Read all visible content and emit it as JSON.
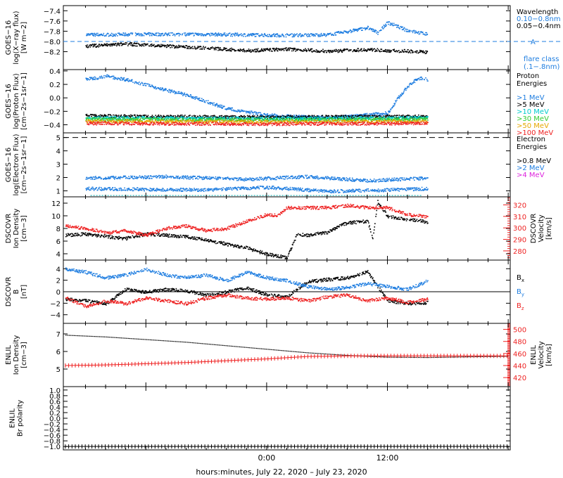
{
  "footer": {
    "xlabel": "hours:minutes, July 22, 2020 – July 23, 2020"
  },
  "time_ticks": [
    "0:00",
    "12:00"
  ],
  "chart_data": [
    {
      "type": "scatter",
      "id": "xray",
      "ylabel": [
        "GOES−16",
        "log(X−ray flux)",
        "[W m−2]"
      ],
      "ylim": [
        -8.55,
        -7.3
      ],
      "yticks": [
        -7.4,
        -7.6,
        -7.8,
        -8.0,
        -8.2
      ],
      "ytick_labels": [
        "−7.4",
        "−7.6",
        "−7.8",
        "−8.0",
        "−8.2"
      ],
      "legend": {
        "title": "Wavelength",
        "entries": [
          {
            "label": "0.10−0.8nm",
            "color": "#1e7de0"
          },
          {
            "label": "0.05−0.4nm",
            "color": "#000000"
          }
        ]
      },
      "flare_marker": {
        "value": -8.0,
        "label": "A",
        "note_lines": [
          "flare class",
          "(.1−.8nm)"
        ],
        "color": "#1e7de0"
      },
      "series": [
        {
          "name": "0.10−0.8nm",
          "color": "#1e7de0",
          "style": "dots",
          "x": [
            -18,
            -12,
            -6,
            -2,
            2,
            6,
            8,
            10,
            11,
            12,
            14,
            16
          ],
          "y": [
            -7.86,
            -7.85,
            -7.85,
            -7.86,
            -7.87,
            -7.86,
            -7.8,
            -7.72,
            -7.82,
            -7.62,
            -7.78,
            -7.85
          ]
        },
        {
          "name": "0.05−0.4nm",
          "color": "#000000",
          "style": "dots",
          "x": [
            -18,
            -14,
            -10,
            -6,
            -2,
            2,
            6,
            10,
            12,
            14,
            16
          ],
          "y": [
            -8.08,
            -8.04,
            -8.08,
            -8.12,
            -8.17,
            -8.14,
            -8.18,
            -8.15,
            -8.17,
            -8.18,
            -8.2
          ]
        }
      ]
    },
    {
      "type": "scatter",
      "id": "proton",
      "ylabel": [
        "GOES−16",
        "log(Proton Flux)",
        "[cm−2s−1sr−1]"
      ],
      "ylim": [
        -0.52,
        0.42
      ],
      "yticks": [
        0.4,
        0.2,
        0.0,
        -0.2,
        -0.4
      ],
      "ytick_labels": [
        "0.4",
        "0.2",
        "0.0",
        "−0.2",
        "−0.4"
      ],
      "legend": {
        "title": "Proton",
        "title2": "Energies",
        "entries": [
          {
            "label": ">1 MeV",
            "color": "#1e7de0"
          },
          {
            "label": ">5 MeV",
            "color": "#000000"
          },
          {
            "label": ">10 MeV",
            "color": "#00cccc"
          },
          {
            "label": ">30 MeV",
            "color": "#33cc33"
          },
          {
            "label": ">50 MeV",
            "color": "#e6a800"
          },
          {
            "label": ">100 MeV",
            "color": "#ee2222"
          }
        ]
      },
      "series": [
        {
          "name": ">1 MeV",
          "color": "#1e7de0",
          "style": "dots",
          "x": [
            -18,
            -16,
            -14,
            -12,
            -10,
            -8,
            -6,
            -4,
            0,
            4,
            8,
            12,
            13,
            14,
            15,
            16
          ],
          "y": [
            0.28,
            0.33,
            0.28,
            0.2,
            0.12,
            0.05,
            -0.05,
            -0.15,
            -0.25,
            -0.28,
            -0.27,
            -0.22,
            0.0,
            0.18,
            0.3,
            0.28
          ]
        },
        {
          "name": ">5 MeV",
          "color": "#000000",
          "style": "dots",
          "x": [
            -18,
            -10,
            0,
            10,
            16
          ],
          "y": [
            -0.26,
            -0.27,
            -0.28,
            -0.27,
            -0.27
          ]
        },
        {
          "name": ">10 MeV",
          "color": "#00cccc",
          "style": "dots",
          "x": [
            -18,
            0,
            16
          ],
          "y": [
            -0.29,
            -0.3,
            -0.29
          ]
        },
        {
          "name": ">30 MeV",
          "color": "#33cc33",
          "style": "dots",
          "x": [
            -18,
            0,
            16
          ],
          "y": [
            -0.31,
            -0.32,
            -0.31
          ]
        },
        {
          "name": ">50 MeV",
          "color": "#e6a800",
          "style": "dots",
          "x": [
            -18,
            0,
            16
          ],
          "y": [
            -0.34,
            -0.35,
            -0.34
          ]
        },
        {
          "name": ">100 MeV",
          "color": "#ee2222",
          "style": "dots",
          "x": [
            -18,
            0,
            16
          ],
          "y": [
            -0.37,
            -0.38,
            -0.37
          ]
        }
      ]
    },
    {
      "type": "scatter",
      "id": "electron",
      "ylabel": [
        "GOES−16",
        "log(Electron Flux)",
        "[cm−2s−1sr−1]"
      ],
      "ylim": [
        0.55,
        5.35
      ],
      "yticks": [
        5,
        4,
        3,
        2,
        1
      ],
      "ytick_labels": [
        "5",
        "4",
        "3",
        "2",
        "1"
      ],
      "legend": {
        "title": "Electron",
        "title2": "Energies",
        "entries": [
          {
            "label": ">0.8 MeV",
            "color": "#000000"
          },
          {
            "label": ">2 MeV",
            "color": "#1e7de0"
          },
          {
            "label": ">4 MeV",
            "color": "#dd22dd"
          }
        ]
      },
      "dashed_line": {
        "value": 5.0,
        "color": "#000000"
      },
      "series": [
        {
          "name": ">2 MeV",
          "color": "#1e7de0",
          "style": "dots",
          "x": [
            -18,
            -10,
            -2,
            4,
            10,
            16
          ],
          "y": [
            2.0,
            2.1,
            1.9,
            2.1,
            1.8,
            2.0
          ]
        },
        {
          "name": ">2 MeV low",
          "color": "#1e7de0",
          "style": "dots",
          "x": [
            -18,
            -6,
            0,
            6,
            12,
            16
          ],
          "y": [
            1.2,
            1.1,
            1.3,
            1.0,
            1.1,
            1.2
          ]
        },
        {
          "name": ">4 MeV",
          "color": "#00aaaa",
          "style": "flat",
          "x": [
            -17.5,
            15.5
          ],
          "y": [
            0.65,
            0.65
          ]
        }
      ]
    },
    {
      "type": "scatter",
      "id": "dscovr_density",
      "ylabel": [
        "DSCOVR",
        "Ion Density",
        "[cm−3]"
      ],
      "ylim": [
        3,
        13
      ],
      "yticks": [
        12,
        10,
        8,
        6,
        4
      ],
      "ytick_labels": [
        "12",
        "10",
        "8",
        "6",
        "4"
      ],
      "right_axis": {
        "ylabel": [
          "DSCOVR",
          "Velocity",
          "[km/s]"
        ],
        "ylim": [
          272,
          327
        ],
        "yticks": [
          320,
          310,
          300,
          290,
          280
        ],
        "ytick_labels": [
          "320",
          "310",
          "300",
          "290",
          "280"
        ],
        "color": "#ee2222"
      },
      "series": [
        {
          "name": "Ion Density",
          "color": "#000000",
          "style": "dots",
          "axis": "left",
          "x": [
            -20,
            -18,
            -16,
            -14,
            -12,
            -10,
            -8,
            -6,
            -4,
            -2,
            0,
            2,
            3,
            4,
            6,
            8,
            10,
            10.5,
            11,
            12,
            14,
            16
          ],
          "y": [
            7.0,
            7.2,
            6.8,
            6.5,
            7.2,
            7.0,
            6.8,
            6.2,
            5.6,
            5.0,
            4.0,
            3.5,
            7.2,
            7.0,
            7.5,
            9.0,
            9.2,
            6.5,
            12.3,
            10.0,
            9.5,
            9.1
          ]
        },
        {
          "name": "Velocity",
          "color": "#ee2222",
          "style": "dots",
          "axis": "right",
          "x": [
            -20,
            -18,
            -16,
            -14,
            -12,
            -10,
            -8,
            -6,
            -4,
            -2,
            0,
            1,
            2,
            4,
            6,
            8,
            10,
            12,
            14,
            16
          ],
          "y": [
            302,
            300,
            296,
            298,
            294,
            300,
            302,
            298,
            300,
            306,
            312,
            311,
            318,
            318,
            318,
            320,
            318,
            318,
            312,
            310
          ]
        }
      ]
    },
    {
      "type": "scatter",
      "id": "dscovr_bfield",
      "ylabel": [
        "DSCOVR",
        "B",
        "[nT]"
      ],
      "ylim": [
        -5.5,
        5.5
      ],
      "yticks": [
        4,
        2,
        0,
        -2,
        -4
      ],
      "ytick_labels": [
        "4",
        "2",
        "0",
        "−2",
        "−4"
      ],
      "zero_line": true,
      "legend_side": [
        {
          "label": "Bx",
          "color": "#000000"
        },
        {
          "label": "By",
          "color": "#1e7de0"
        },
        {
          "label": "Bz",
          "color": "#ee2222"
        }
      ],
      "series": [
        {
          "name": "Bx",
          "color": "#000000",
          "style": "dots",
          "x": [
            -20,
            -18,
            -16,
            -14,
            -12,
            -10,
            -8,
            -6,
            -4,
            -2,
            0,
            2,
            4,
            6,
            8,
            10,
            12,
            14,
            16
          ],
          "y": [
            -1.2,
            -1.5,
            -2.0,
            0.5,
            0.0,
            0.5,
            0.2,
            -0.5,
            0.0,
            0.8,
            -0.5,
            -0.8,
            1.8,
            2.2,
            2.5,
            3.5,
            -1.5,
            -2.0,
            -1.8
          ]
        },
        {
          "name": "By",
          "color": "#1e7de0",
          "style": "dots",
          "x": [
            -20,
            -18,
            -16,
            -14,
            -12,
            -10,
            -8,
            -6,
            -4,
            -2,
            0,
            2,
            4,
            6,
            8,
            10,
            12,
            14,
            16
          ],
          "y": [
            4.0,
            3.5,
            2.5,
            3.0,
            4.0,
            3.0,
            2.5,
            3.0,
            2.0,
            3.5,
            2.5,
            2.0,
            1.0,
            0.5,
            0.8,
            1.5,
            1.0,
            0.5,
            2.0
          ]
        },
        {
          "name": "Bz",
          "color": "#ee2222",
          "style": "dots",
          "x": [
            -20,
            -18,
            -16,
            -14,
            -12,
            -10,
            -8,
            -6,
            -4,
            -2,
            0,
            2,
            4,
            6,
            8,
            10,
            12,
            14,
            16
          ],
          "y": [
            -1.0,
            -2.5,
            -1.5,
            -2.0,
            -1.0,
            -1.5,
            -2.0,
            -1.0,
            -0.5,
            -1.0,
            -1.2,
            -1.0,
            -1.5,
            -0.8,
            -0.5,
            -1.5,
            -1.0,
            -1.8,
            -1.2
          ]
        }
      ]
    },
    {
      "type": "line",
      "id": "enlil_density",
      "ylabel": [
        "ENLIL",
        "Ion Density",
        "[cm−3]"
      ],
      "ylim": [
        4.0,
        7.6
      ],
      "yticks": [
        7,
        6,
        5
      ],
      "ytick_labels": [
        "7",
        "6",
        "5"
      ],
      "right_axis": {
        "ylabel": [
          "ENLIL",
          "Velocity",
          "[km/s]"
        ],
        "ylim": [
          405,
          510
        ],
        "yticks": [
          500,
          480,
          460,
          440,
          420
        ],
        "ytick_labels": [
          "500",
          "480",
          "460",
          "440",
          "420"
        ],
        "color": "#ee2222"
      },
      "series": [
        {
          "name": "Ion Density",
          "color": "#000000",
          "style": "dotted-line",
          "axis": "left",
          "x": [
            -20,
            -16,
            -12,
            -8,
            -4,
            0,
            4,
            8,
            12,
            16,
            20,
            24
          ],
          "y": [
            6.95,
            6.85,
            6.7,
            6.55,
            6.35,
            6.15,
            5.95,
            5.8,
            5.7,
            5.68,
            5.72,
            5.75
          ]
        },
        {
          "name": "Velocity",
          "color": "#ee2222",
          "style": "plus-line",
          "axis": "right",
          "x": [
            -20,
            -16,
            -12,
            -8,
            -4,
            0,
            4,
            8,
            12,
            16,
            20,
            24
          ],
          "y": [
            440,
            441,
            443,
            445,
            448,
            451,
            455,
            456,
            456,
            456,
            456,
            456
          ]
        }
      ]
    },
    {
      "type": "line",
      "id": "enlil_polarity",
      "ylabel": [
        "ENLIL",
        "Br polarity"
      ],
      "ylim": [
        -1.12,
        1.12
      ],
      "yticks": [
        1.0,
        0.8,
        0.6,
        0.4,
        0.2,
        0.0,
        -0.2,
        -0.4,
        -0.6,
        -0.8,
        -1.0
      ],
      "ytick_labels": [
        "1.0",
        "0.8",
        "0.6",
        "0.4",
        "0.2",
        "0.0",
        "−0.2",
        "−0.4",
        "−0.6",
        "−0.8",
        "−1.0"
      ],
      "series": [
        {
          "name": "Br polarity",
          "color": "#000000",
          "style": "plus-line",
          "axis": "left",
          "x": [
            -20,
            24
          ],
          "y": [
            -1.0,
            -1.0
          ]
        }
      ]
    }
  ]
}
